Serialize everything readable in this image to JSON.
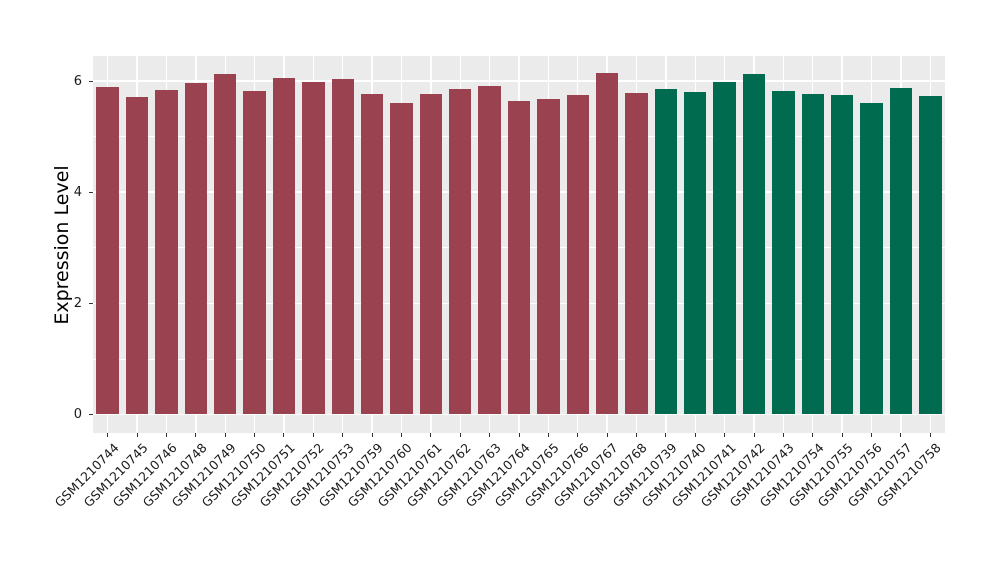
{
  "chart_data": {
    "type": "bar",
    "title": "",
    "xlabel": "",
    "ylabel": "Expression Level",
    "y_ticks": [
      0,
      2,
      4,
      6
    ],
    "y_minor_ticks": [
      1,
      3,
      5
    ],
    "y_range": [
      -0.33,
      6.45
    ],
    "grid": "on",
    "legend_position": "none",
    "panel_background": "#EBEBEB",
    "grid_color": "#FFFFFF",
    "categories": [
      "GSM1210744",
      "GSM1210745",
      "GSM1210746",
      "GSM1210748",
      "GSM1210749",
      "GSM1210750",
      "GSM1210751",
      "GSM1210752",
      "GSM1210753",
      "GSM1210759",
      "GSM1210760",
      "GSM1210761",
      "GSM1210762",
      "GSM1210763",
      "GSM1210764",
      "GSM1210765",
      "GSM1210766",
      "GSM1210767",
      "GSM1210768",
      "GSM1210739",
      "GSM1210740",
      "GSM1210741",
      "GSM1210742",
      "GSM1210743",
      "GSM1210754",
      "GSM1210755",
      "GSM1210756",
      "GSM1210757",
      "GSM1210758"
    ],
    "values": [
      5.89,
      5.71,
      5.84,
      5.96,
      6.12,
      5.82,
      6.05,
      5.98,
      6.04,
      5.77,
      5.6,
      5.77,
      5.86,
      5.91,
      5.64,
      5.68,
      5.75,
      6.14,
      5.78,
      5.86,
      5.8,
      5.98,
      6.13,
      5.82,
      5.76,
      5.75,
      5.61,
      5.87,
      5.73
    ],
    "groups": [
      {
        "color": "#9A424F",
        "start_index": 0,
        "end_index": 18
      },
      {
        "color": "#006B4E",
        "start_index": 19,
        "end_index": 28
      }
    ]
  }
}
